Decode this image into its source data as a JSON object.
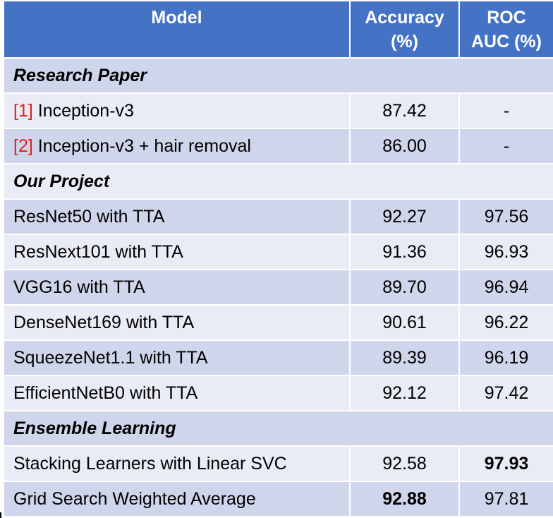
{
  "colors": {
    "header_bg": "#4472c4",
    "row_dark": "#cfd5ea",
    "row_light": "#e9ebf5",
    "reference": "#e02020"
  },
  "header": {
    "model": "Model",
    "accuracy_line1": "Accuracy",
    "accuracy_line2": "(%)",
    "roc_line1": "ROC",
    "roc_line2": "AUC (%)"
  },
  "sections": [
    {
      "title": "Research Paper",
      "rows": [
        {
          "ref": "[1]",
          "model": " Inception-v3",
          "accuracy": "87.42",
          "roc_auc": "-"
        },
        {
          "ref": "[2]",
          "model": " Inception-v3 + hair removal",
          "accuracy": "86.00",
          "roc_auc": "-"
        }
      ]
    },
    {
      "title": "Our Project",
      "rows": [
        {
          "model": "ResNet50 with TTA",
          "accuracy": "92.27",
          "roc_auc": "97.56"
        },
        {
          "model": "ResNext101 with TTA",
          "accuracy": "91.36",
          "roc_auc": "96.93"
        },
        {
          "model": "VGG16 with TTA",
          "accuracy": "89.70",
          "roc_auc": "96.94"
        },
        {
          "model": "DenseNet169 with TTA",
          "accuracy": "90.61",
          "roc_auc": "96.22"
        },
        {
          "model": "SqueezeNet1.1 with TTA",
          "accuracy": "89.39",
          "roc_auc": "96.19"
        },
        {
          "model": "EfficientNetB0 with TTA",
          "accuracy": "92.12",
          "roc_auc": "97.42"
        }
      ]
    },
    {
      "title": "Ensemble Learning",
      "rows": [
        {
          "model": "Stacking Learners with Linear SVC",
          "accuracy": "92.58",
          "roc_auc": "97.93",
          "roc_auc_bold": true
        },
        {
          "model": "Grid Search Weighted Average",
          "accuracy": "92.88",
          "roc_auc": "97.81",
          "accuracy_bold": true
        }
      ]
    }
  ]
}
